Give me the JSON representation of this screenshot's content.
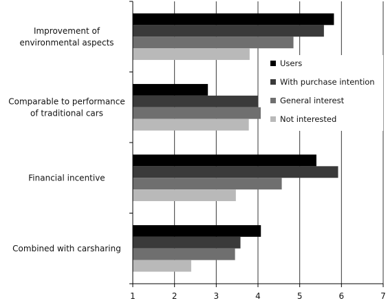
{
  "chart_data": {
    "type": "bar",
    "orientation": "horizontal",
    "title": "",
    "xlabel": "",
    "ylabel": "",
    "xlim": [
      1,
      7
    ],
    "xticks": [
      1,
      2,
      3,
      4,
      5,
      6,
      7
    ],
    "grid": true,
    "legend_position": "right",
    "categories": [
      [
        "Improvement of",
        "environmental aspects"
      ],
      [
        "Comparable to performance",
        "of traditional  cars"
      ],
      [
        "Financial incentive"
      ],
      [
        "Combined with carsharing"
      ]
    ],
    "series": [
      {
        "name": "Users",
        "color": "#000000",
        "values": [
          5.82,
          2.8,
          5.4,
          4.07
        ]
      },
      {
        "name": "With purchase intention",
        "color": "#3a3a3a",
        "values": [
          5.58,
          4.0,
          5.92,
          3.58
        ]
      },
      {
        "name": "General interest",
        "color": "#6f6f6f",
        "values": [
          4.85,
          4.17,
          4.57,
          3.45
        ]
      },
      {
        "name": "Not interested",
        "color": "#b9b9b9",
        "values": [
          3.8,
          3.78,
          3.47,
          2.4
        ]
      }
    ]
  }
}
